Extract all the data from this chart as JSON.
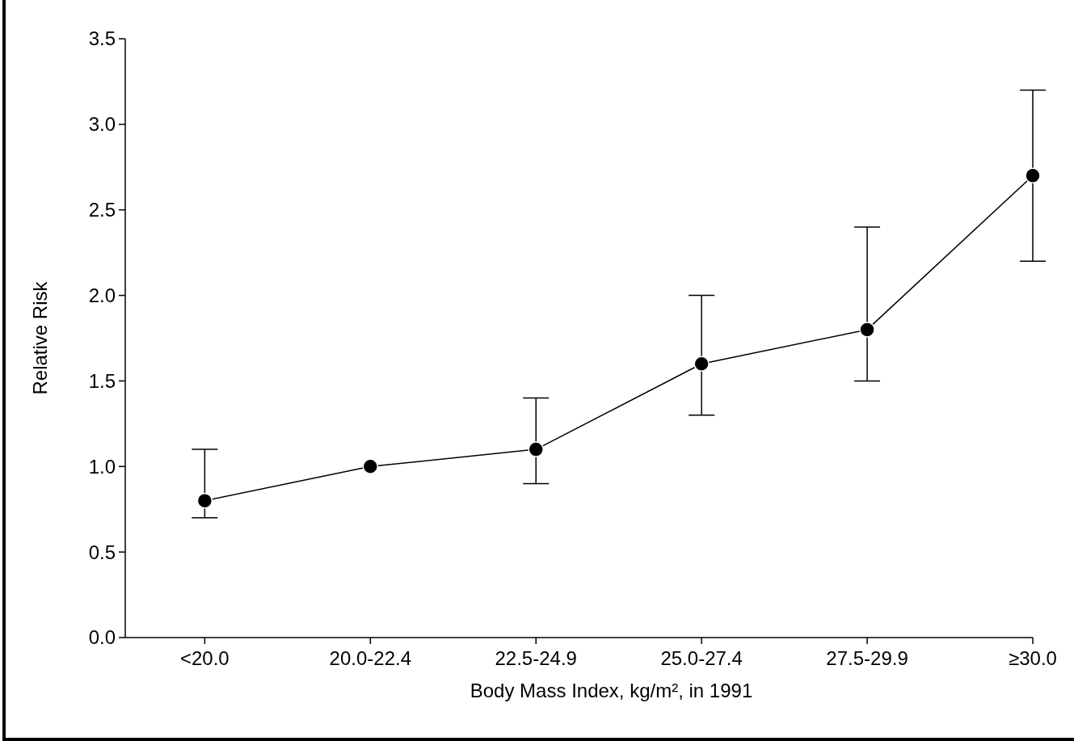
{
  "chart_data": {
    "type": "line",
    "xlabel": "Body Mass Index, kg/m², in 1991",
    "ylabel": "Relative Risk",
    "categories": [
      "<20.0",
      "20.0-22.4",
      "22.5-24.9",
      "25.0-27.4",
      "27.5-29.9",
      "≥30.0"
    ],
    "series": [
      {
        "color": "#000000",
        "values": [
          0.8,
          1.0,
          1.1,
          1.6,
          1.8,
          2.7
        ],
        "errors": [
          [
            0.7,
            1.1
          ],
          null,
          [
            0.9,
            1.4
          ],
          [
            1.3,
            2.0
          ],
          [
            1.5,
            2.4
          ],
          [
            2.2,
            3.2
          ]
        ]
      }
    ],
    "ylim": [
      0,
      3.5
    ],
    "yticks": [
      {
        "value": 0,
        "label": "0.0"
      },
      {
        "value": 0.5,
        "label": "0.5"
      },
      {
        "value": 1,
        "label": "1.0"
      },
      {
        "value": 1.5,
        "label": "1.5"
      },
      {
        "value": 2,
        "label": "2.0"
      },
      {
        "value": 2.5,
        "label": "2.5"
      },
      {
        "value": 3,
        "label": "3.0"
      },
      {
        "value": 3.5,
        "label": "3.5"
      }
    ],
    "marker": "circle",
    "line_style": "solid",
    "grid": false
  }
}
